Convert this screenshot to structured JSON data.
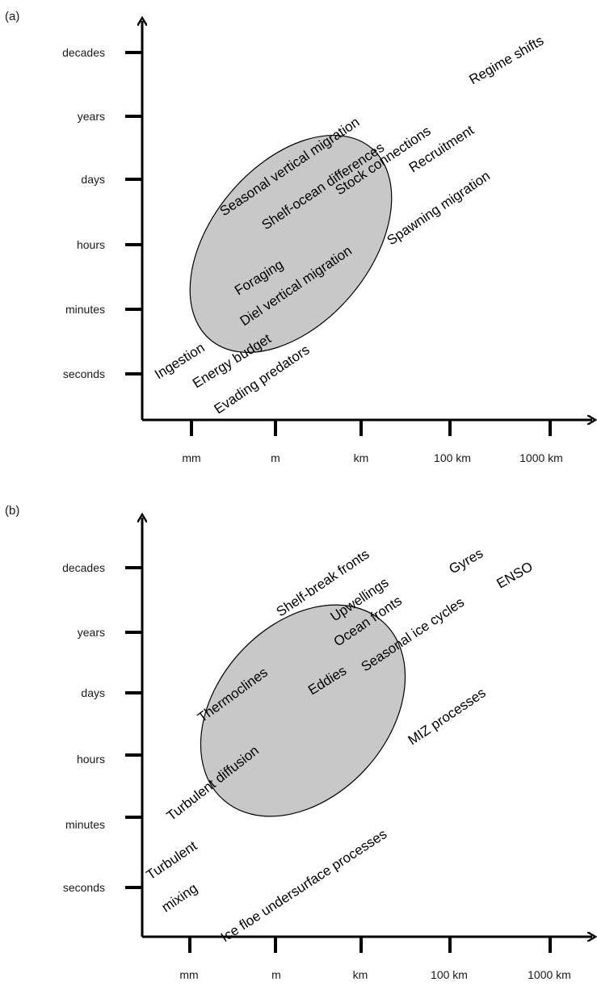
{
  "panels": [
    {
      "label": "(a)",
      "y_ticks": [
        "decades",
        "years",
        "days",
        "hours",
        "minutes",
        "seconds"
      ],
      "x_ticks": [
        "mm",
        "m",
        "km",
        "100 km",
        "1000 km"
      ],
      "processes": [
        "Regime shifts",
        "Seasonal vertical migration",
        "Shelf-ocean differences",
        "Stock connections",
        "Recruitment",
        "Spawning migration",
        "Foraging",
        "Diel vertical migration",
        "Ingestion",
        "Energy budget",
        "Evading predators"
      ]
    },
    {
      "label": "(b)",
      "y_ticks": [
        "decades",
        "years",
        "days",
        "hours",
        "minutes",
        "seconds"
      ],
      "x_ticks": [
        "mm",
        "m",
        "km",
        "100 km",
        "1000 km"
      ],
      "processes": [
        "Shelf-break fronts",
        "Gyres",
        "ENSO",
        "Upwellings",
        "Ocean fronts",
        "Seasonal ice cycles",
        "Thermoclines",
        "Eddies",
        "MIZ processes",
        "Turbulent diffusion",
        "Ice floe undersurface processes",
        "Turbulent",
        "mixing"
      ]
    }
  ]
}
